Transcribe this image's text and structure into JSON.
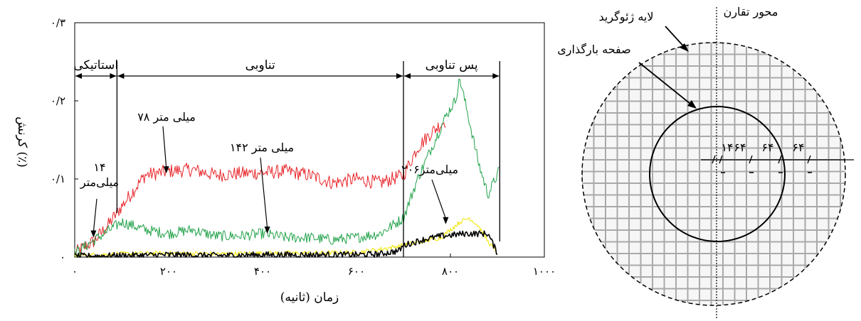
{
  "chart_data": {
    "type": "line",
    "xlabel": "زمان (ثانیه)",
    "ylabel": "کرنش (٪)",
    "xlim": [
      0,
      1000
    ],
    "ylim": [
      0,
      0.3
    ],
    "x_ticks": [
      0,
      200,
      400,
      600,
      800,
      1000
    ],
    "x_tick_labels": [
      "۰",
      "۲۰۰",
      "۴۰۰",
      "۶۰۰",
      "۸۰۰",
      "۱۰۰۰"
    ],
    "y_ticks": [
      0,
      0.1,
      0.2,
      0.3
    ],
    "y_tick_labels": [
      "۰",
      "۰/۱",
      "۰/۲",
      "۰/۳"
    ],
    "grid": false,
    "legend": "none",
    "phases": [
      {
        "label": "استاتیکی",
        "x_start": 0,
        "x_end": 90
      },
      {
        "label": "تناوبی",
        "x_start": 90,
        "x_end": 700
      },
      {
        "label": "پس تناوبی",
        "x_start": 700,
        "x_end": 905
      }
    ],
    "series": [
      {
        "color": "#e8252a",
        "x": [
          0,
          40,
          70,
          100,
          150,
          200,
          250,
          300,
          350,
          400,
          450,
          500,
          550,
          600,
          650,
          700,
          730,
          760,
          790
        ],
        "y": [
          0.005,
          0.02,
          0.04,
          0.065,
          0.105,
          0.11,
          0.112,
          0.105,
          0.107,
          0.108,
          0.11,
          0.105,
          0.095,
          0.1,
          0.095,
          0.105,
          0.14,
          0.16,
          0.175
        ]
      },
      {
        "color": "#22a24a",
        "x": [
          0,
          50,
          100,
          150,
          200,
          250,
          300,
          350,
          400,
          450,
          500,
          550,
          600,
          650,
          700,
          730,
          760,
          790,
          810,
          820,
          840,
          860,
          880,
          905
        ],
        "y": [
          0.005,
          0.025,
          0.045,
          0.035,
          0.03,
          0.035,
          0.027,
          0.027,
          0.03,
          0.025,
          0.025,
          0.022,
          0.025,
          0.03,
          0.05,
          0.1,
          0.14,
          0.18,
          0.2,
          0.228,
          0.175,
          0.12,
          0.08,
          0.112
        ]
      },
      {
        "color": "#f2e500",
        "x": [
          0,
          100,
          200,
          300,
          400,
          500,
          600,
          650,
          700,
          740,
          780,
          800,
          820,
          840,
          860,
          880,
          900
        ],
        "y": [
          0.002,
          0.004,
          0.005,
          0.004,
          0.005,
          0.005,
          0.006,
          0.01,
          0.015,
          0.02,
          0.025,
          0.035,
          0.045,
          0.05,
          0.04,
          0.02,
          0.005
        ]
      },
      {
        "color": "#000000",
        "x": [
          0,
          100,
          200,
          300,
          400,
          500,
          600,
          650,
          690,
          700,
          740,
          780,
          800,
          830,
          860,
          880,
          900
        ],
        "y": [
          0.001,
          0.002,
          0.003,
          0.002,
          0.003,
          0.003,
          0.003,
          0.004,
          0.008,
          0.015,
          0.022,
          0.027,
          0.028,
          0.03,
          0.03,
          0.03,
          0.005
        ]
      }
    ],
    "annotations": [
      {
        "lines": [
          "۱۴",
          "میلی‌متر"
        ],
        "x": 40,
        "y": 0.025
      },
      {
        "lines": [
          "۷۸ میلی متر"
        ],
        "x": 195,
        "y": 0.107
      },
      {
        "lines": [
          "۱۴۲ میلی متر"
        ],
        "x": 410,
        "y": 0.03
      },
      {
        "lines": [
          "۲۰۶میلی‌متر"
        ],
        "x": 790,
        "y": 0.042
      }
    ]
  },
  "diagram": {
    "outer_label": "لایه ژئوگرید",
    "plate_label": "صفحه بارگذاری",
    "axis_label": "محور تقارن",
    "spacing_labels": [
      "۱۴",
      "۶۴",
      "۶۴",
      "۶۴"
    ]
  }
}
